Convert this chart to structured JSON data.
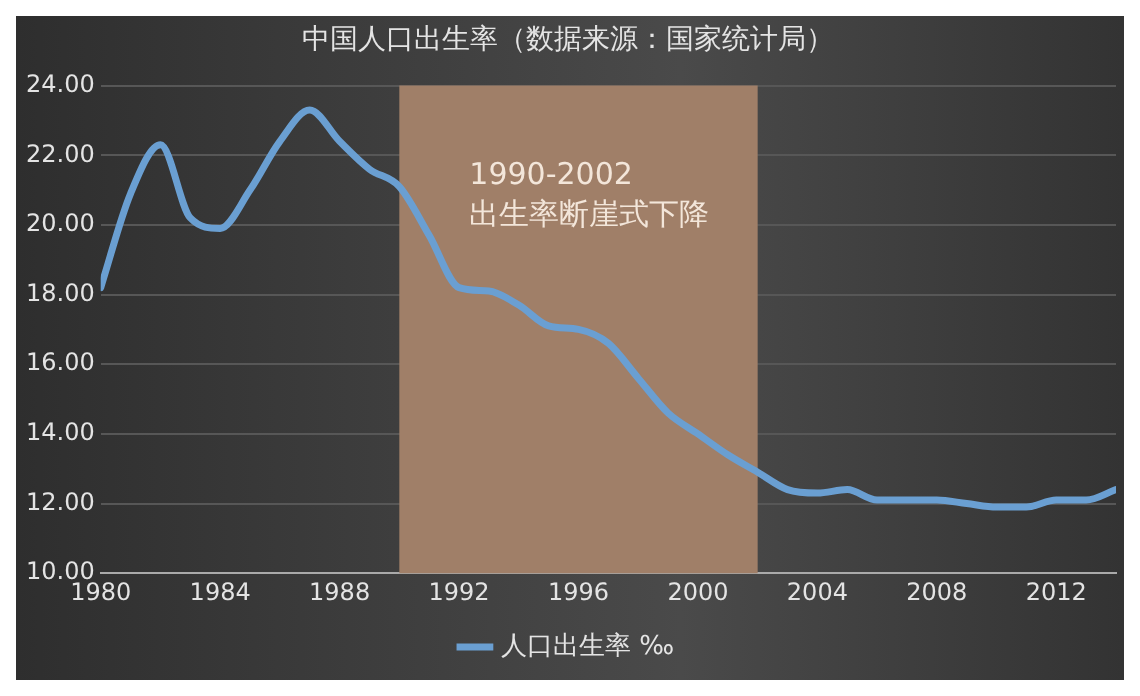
{
  "chart_data": {
    "type": "line",
    "title": "中国人口出生率（数据来源：国家统计局）",
    "x": [
      1980,
      1981,
      1982,
      1983,
      1984,
      1985,
      1986,
      1987,
      1988,
      1989,
      1990,
      1991,
      1992,
      1993,
      1994,
      1995,
      1996,
      1997,
      1998,
      1999,
      2000,
      2001,
      2002,
      2003,
      2004,
      2005,
      2006,
      2007,
      2008,
      2009,
      2010,
      2011,
      2012,
      2013,
      2014
    ],
    "series": [
      {
        "name": "人口出生率 ‰",
        "color": "#6a9fd2",
        "values": [
          18.2,
          20.9,
          22.3,
          20.2,
          19.9,
          21.0,
          22.4,
          23.3,
          22.4,
          21.6,
          21.1,
          19.7,
          18.2,
          18.1,
          17.7,
          17.1,
          17.0,
          16.6,
          15.6,
          14.6,
          14.0,
          13.4,
          12.9,
          12.4,
          12.3,
          12.4,
          12.1,
          12.1,
          12.1,
          12.0,
          11.9,
          11.9,
          12.1,
          12.1,
          12.4
        ]
      }
    ],
    "xlim": [
      1980,
      2014
    ],
    "xticks": [
      1980,
      1984,
      1988,
      1992,
      1996,
      2000,
      2004,
      2008,
      2012
    ],
    "ylim": [
      10,
      24
    ],
    "yticks": [
      {
        "value": 10,
        "label": "10.00"
      },
      {
        "value": 12,
        "label": "12.00"
      },
      {
        "value": 14,
        "label": "14.00"
      },
      {
        "value": 16,
        "label": "16.00"
      },
      {
        "value": 18,
        "label": "18.00"
      },
      {
        "value": 20,
        "label": "20.00"
      },
      {
        "value": 22,
        "label": "22.00"
      },
      {
        "value": 24,
        "label": "24.00"
      }
    ],
    "bands": [
      {
        "axis": "x",
        "from": 1990,
        "to": 2002,
        "label": "1990-2002\n出生率断崖式下降",
        "color": "#a07f68"
      }
    ],
    "grid": "y",
    "legend": "bottom",
    "marker": "none",
    "line_style": "solid"
  }
}
